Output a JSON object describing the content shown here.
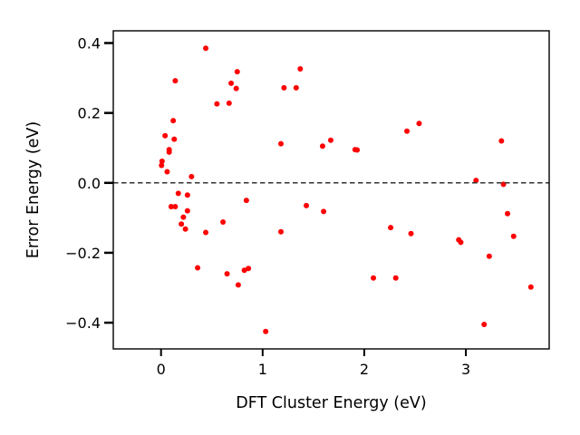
{
  "chart_data": {
    "type": "scatter",
    "title": "",
    "xlabel": "DFT Cluster Energy (eV)",
    "ylabel": "Error Energy (eV)",
    "xlim": [
      -0.47,
      3.82
    ],
    "ylim": [
      -0.475,
      0.435
    ],
    "xticks": [
      0,
      1,
      2,
      3
    ],
    "yticks": [
      -0.4,
      -0.2,
      0.0,
      0.2,
      0.4
    ],
    "xtick_labels": [
      "0",
      "1",
      "2",
      "3"
    ],
    "ytick_labels": [
      "−0.4",
      "−0.2",
      "0.0",
      "0.2",
      "0.4"
    ],
    "grid": false,
    "reference_line": {
      "y": 0.0,
      "style": "dashed",
      "color": "#333333"
    },
    "point_color": "#ff0000",
    "series": [
      {
        "points": [
          [
            0.005,
            0.05
          ],
          [
            0.01,
            0.062
          ],
          [
            0.04,
            0.135
          ],
          [
            0.06,
            0.032
          ],
          [
            0.08,
            0.095
          ],
          [
            0.08,
            0.088
          ],
          [
            0.12,
            0.178
          ],
          [
            0.13,
            0.125
          ],
          [
            0.14,
            0.292
          ],
          [
            0.1,
            -0.068
          ],
          [
            0.14,
            -0.068
          ],
          [
            0.17,
            -0.03
          ],
          [
            0.2,
            -0.118
          ],
          [
            0.22,
            -0.098
          ],
          [
            0.24,
            -0.132
          ],
          [
            0.26,
            -0.08
          ],
          [
            0.26,
            -0.035
          ],
          [
            0.3,
            0.018
          ],
          [
            0.36,
            -0.243
          ],
          [
            0.44,
            0.385
          ],
          [
            0.44,
            -0.142
          ],
          [
            0.55,
            0.226
          ],
          [
            0.61,
            -0.112
          ],
          [
            0.65,
            -0.26
          ],
          [
            0.67,
            0.228
          ],
          [
            0.69,
            0.285
          ],
          [
            0.74,
            0.27
          ],
          [
            0.75,
            0.318
          ],
          [
            0.76,
            -0.292
          ],
          [
            0.82,
            -0.25
          ],
          [
            0.84,
            -0.05
          ],
          [
            0.86,
            -0.245
          ],
          [
            1.03,
            -0.425
          ],
          [
            1.18,
            0.112
          ],
          [
            1.18,
            -0.14
          ],
          [
            1.21,
            0.272
          ],
          [
            1.33,
            0.272
          ],
          [
            1.37,
            0.326
          ],
          [
            1.43,
            -0.065
          ],
          [
            1.59,
            0.105
          ],
          [
            1.6,
            -0.082
          ],
          [
            1.67,
            0.122
          ],
          [
            1.91,
            0.095
          ],
          [
            1.93,
            0.094
          ],
          [
            2.09,
            -0.272
          ],
          [
            2.26,
            -0.128
          ],
          [
            2.31,
            -0.272
          ],
          [
            2.42,
            0.148
          ],
          [
            2.46,
            -0.145
          ],
          [
            2.54,
            0.17
          ],
          [
            2.93,
            -0.163
          ],
          [
            2.95,
            -0.17
          ],
          [
            3.1,
            0.007
          ],
          [
            3.18,
            -0.405
          ],
          [
            3.23,
            -0.21
          ],
          [
            3.35,
            0.12
          ],
          [
            3.37,
            -0.004
          ],
          [
            3.41,
            -0.088
          ],
          [
            3.47,
            -0.153
          ],
          [
            3.64,
            -0.298
          ]
        ]
      }
    ]
  }
}
